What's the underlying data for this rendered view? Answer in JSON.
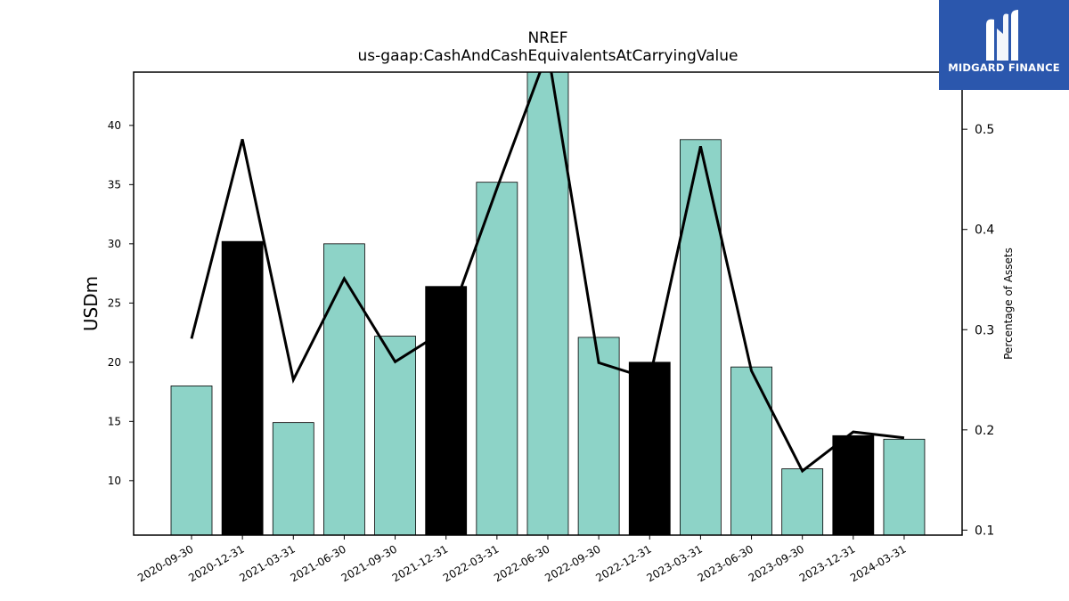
{
  "brand": {
    "name": "MIDGARD FINANCE",
    "logo_icon": "midgard-m-icon",
    "background": "#2b57ad"
  },
  "chart_data": {
    "type": "bar",
    "title": "NREF",
    "subtitle": "us-gaap:CashAndCashEquivalentsAtCarryingValue",
    "xlabel": "",
    "ylabel": "USDm",
    "ylabel_right": "Percentage of Assets",
    "categories": [
      "2020-09-30",
      "2020-12-31",
      "2021-03-31",
      "2021-06-30",
      "2021-09-30",
      "2021-12-31",
      "2022-03-31",
      "2022-06-30",
      "2022-09-30",
      "2022-12-31",
      "2023-03-31",
      "2023-06-30",
      "2023-09-30",
      "2023-12-31",
      "2024-03-31"
    ],
    "series": [
      {
        "axis": "left",
        "kind": "bar",
        "values": [
          18.0,
          30.2,
          14.9,
          30.0,
          22.2,
          26.4,
          35.2,
          44.5,
          22.1,
          20.0,
          38.8,
          19.6,
          11.0,
          13.8,
          13.5
        ],
        "highlighted": [
          false,
          true,
          false,
          false,
          false,
          true,
          false,
          false,
          false,
          true,
          false,
          false,
          false,
          true,
          false
        ]
      },
      {
        "axis": "right",
        "kind": "line",
        "values": [
          0.291,
          0.49,
          0.25,
          0.351,
          0.268,
          0.3,
          0.441,
          0.578,
          0.267,
          0.251,
          0.483,
          0.259,
          0.159,
          0.198,
          0.192
        ]
      }
    ],
    "ylim": [
      5.4,
      44.5
    ],
    "ylim_right": [
      0.095,
      0.557
    ],
    "yticks": [
      10,
      15,
      20,
      25,
      30,
      35,
      40
    ],
    "yticks_right": [
      0.1,
      0.2,
      0.3,
      0.4,
      0.5
    ],
    "ytick_labels_right": [
      "0.1",
      "0.2",
      "0.3",
      "0.4",
      "0.5"
    ],
    "grid": false,
    "colors": {
      "bar": "#8dd3c7",
      "bar_highlight": "#000000",
      "line": "#000000"
    }
  }
}
